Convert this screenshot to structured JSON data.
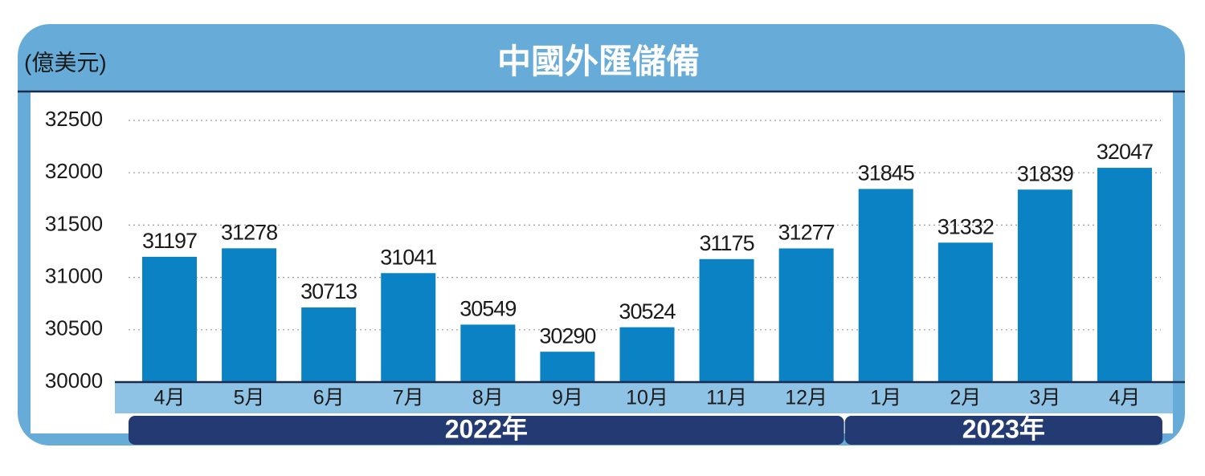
{
  "chart_data": {
    "type": "bar",
    "title": "中國外匯儲備",
    "unit": "(億美元)",
    "color": "#0a82c4",
    "groups": [
      {
        "label": "2022年",
        "categories": [
          "4月",
          "5月",
          "6月",
          "7月",
          "8月",
          "9月",
          "10月",
          "11月",
          "12月"
        ],
        "values": [
          31197,
          31278,
          30713,
          31041,
          30549,
          30290,
          30524,
          31175,
          31277
        ]
      },
      {
        "label": "2023年",
        "categories": [
          "1月",
          "2月",
          "3月",
          "4月"
        ],
        "values": [
          31845,
          31332,
          31839,
          32047
        ]
      }
    ],
    "ylim": [
      30000,
      32500
    ],
    "yticks": [
      30000,
      30500,
      31000,
      31500,
      32000,
      32500
    ],
    "grid": true
  }
}
